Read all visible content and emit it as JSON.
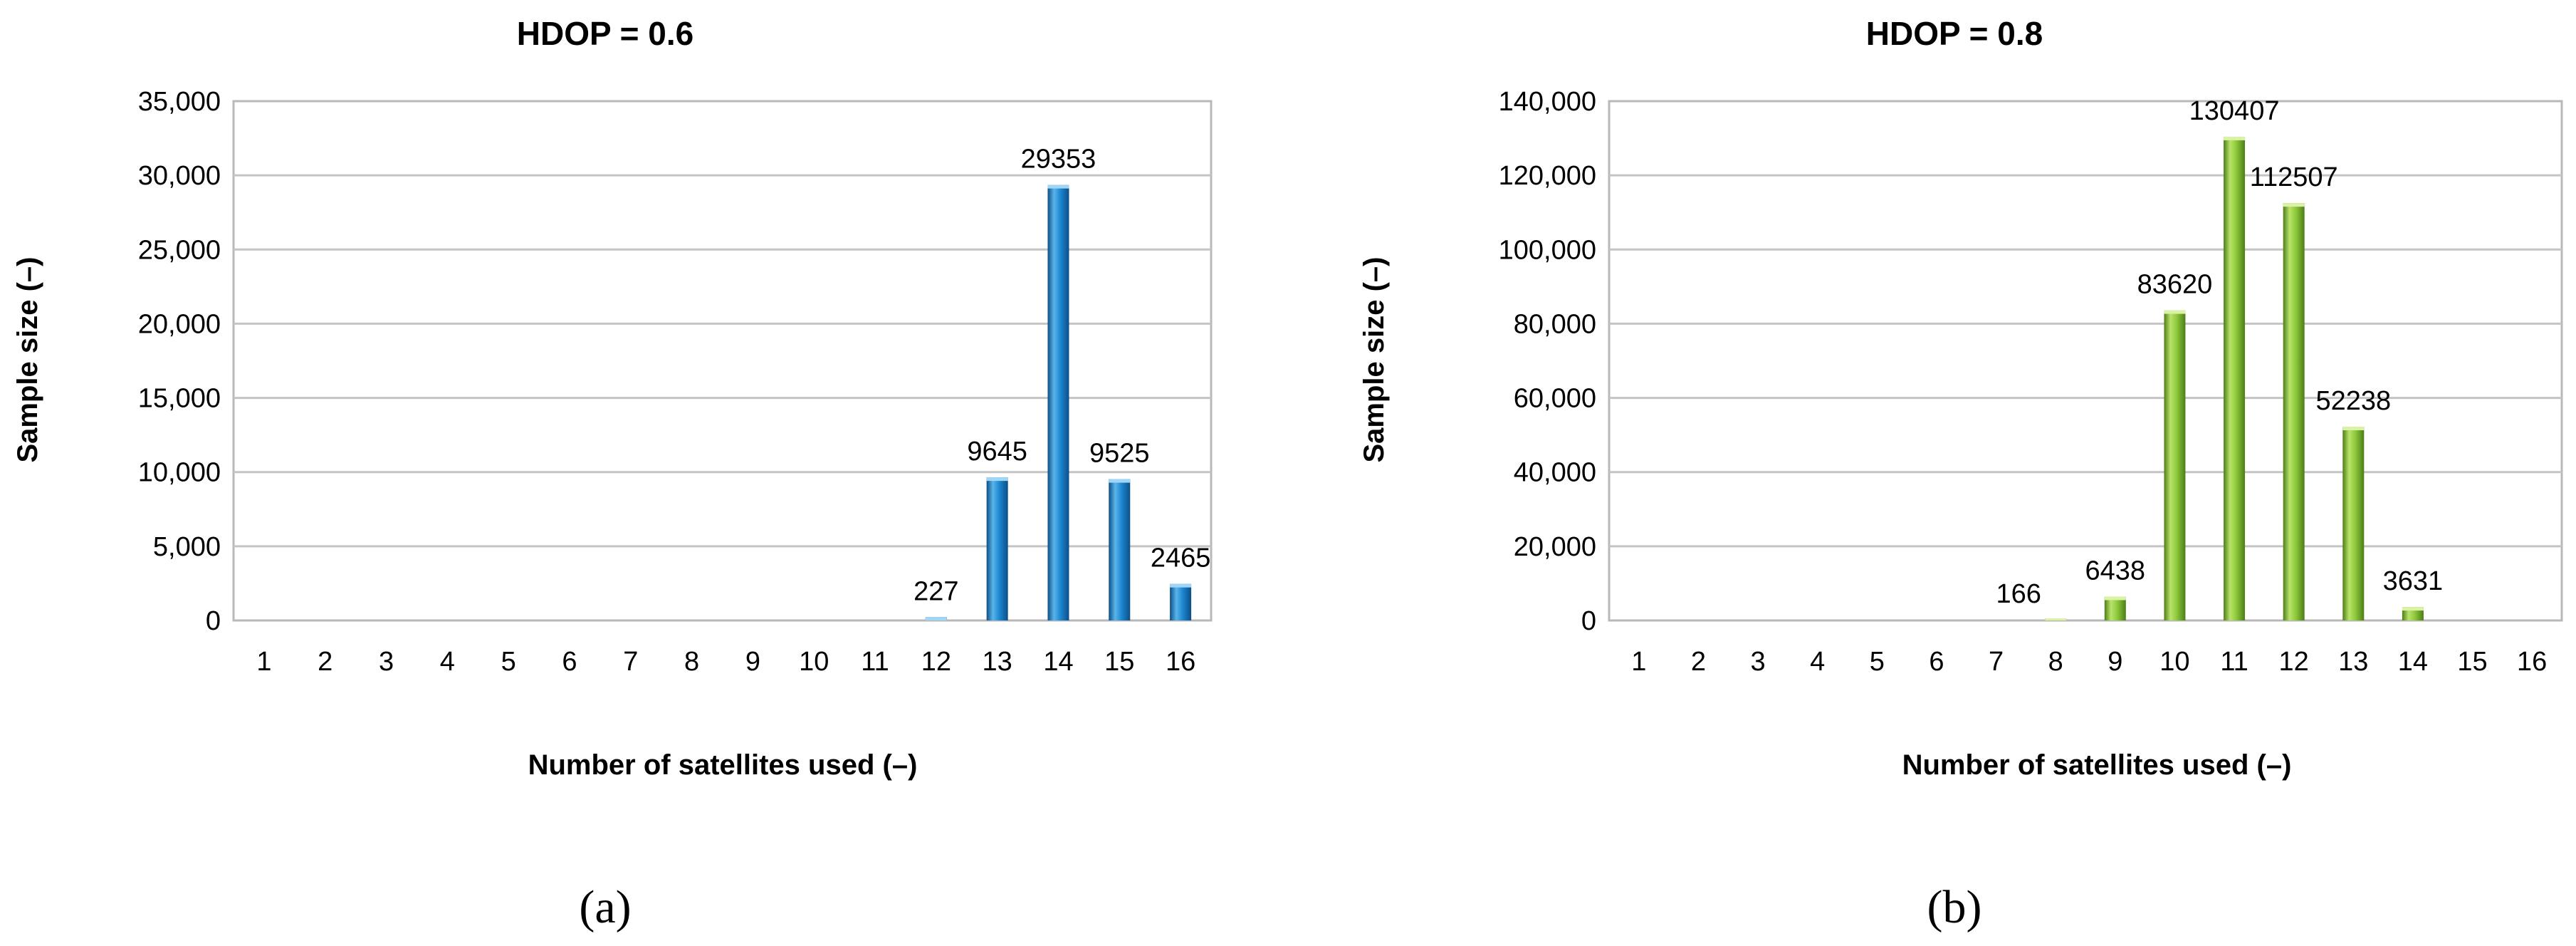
{
  "chart_data": [
    {
      "type": "bar",
      "title": "HDOP = 0.6",
      "xlabel": "Number of satellites used (–)",
      "ylabel": "Sample size (–)",
      "sublabel": "(a)",
      "categories": [
        "1",
        "2",
        "3",
        "4",
        "5",
        "6",
        "7",
        "8",
        "9",
        "10",
        "11",
        "12",
        "13",
        "14",
        "15",
        "16"
      ],
      "values": [
        0,
        0,
        0,
        0,
        0,
        0,
        0,
        0,
        0,
        0,
        0,
        227,
        9645,
        29353,
        9525,
        2465
      ],
      "data_labels": [
        "",
        "",
        "",
        "",
        "",
        "",
        "",
        "",
        "",
        "",
        "",
        "227",
        "9645",
        "29353",
        "9525",
        "2465"
      ],
      "ylim": [
        0,
        35000
      ],
      "yticks": [
        0,
        5000,
        10000,
        15000,
        20000,
        25000,
        30000,
        35000
      ],
      "ytick_labels": [
        "0",
        "5,000",
        "10,000",
        "15,000",
        "20,000",
        "25,000",
        "30,000",
        "35,000"
      ],
      "grid": true,
      "colors": {
        "bar_light": "#5ab4ea",
        "bar_mid": "#1c86d0",
        "bar_dark": "#0c4f86",
        "bar_top": "#9fd6f6"
      }
    },
    {
      "type": "bar",
      "title": "HDOP = 0.8",
      "xlabel": "Number of satellites used (–)",
      "ylabel": "Sample size (–)",
      "sublabel": "(b)",
      "categories": [
        "1",
        "2",
        "3",
        "4",
        "5",
        "6",
        "7",
        "8",
        "9",
        "10",
        "11",
        "12",
        "13",
        "14",
        "15",
        "16"
      ],
      "values": [
        0,
        0,
        0,
        0,
        0,
        0,
        0,
        166,
        6438,
        83620,
        130407,
        112507,
        52238,
        3631,
        0,
        0
      ],
      "data_labels": [
        "",
        "",
        "",
        "",
        "",
        "",
        "",
        "166",
        "6438",
        "83620",
        "130407",
        "112507",
        "52238",
        "3631",
        "",
        ""
      ],
      "ylim": [
        0,
        140000
      ],
      "yticks": [
        0,
        20000,
        40000,
        60000,
        80000,
        100000,
        120000,
        140000
      ],
      "ytick_labels": [
        "0",
        "20,000",
        "40,000",
        "60,000",
        "80,000",
        "100,000",
        "120,000",
        "140,000"
      ],
      "grid": true,
      "colors": {
        "bar_light": "#b9e36a",
        "bar_mid": "#8cc83a",
        "bar_dark": "#4d7d17",
        "bar_top": "#d9f2a6"
      }
    }
  ]
}
